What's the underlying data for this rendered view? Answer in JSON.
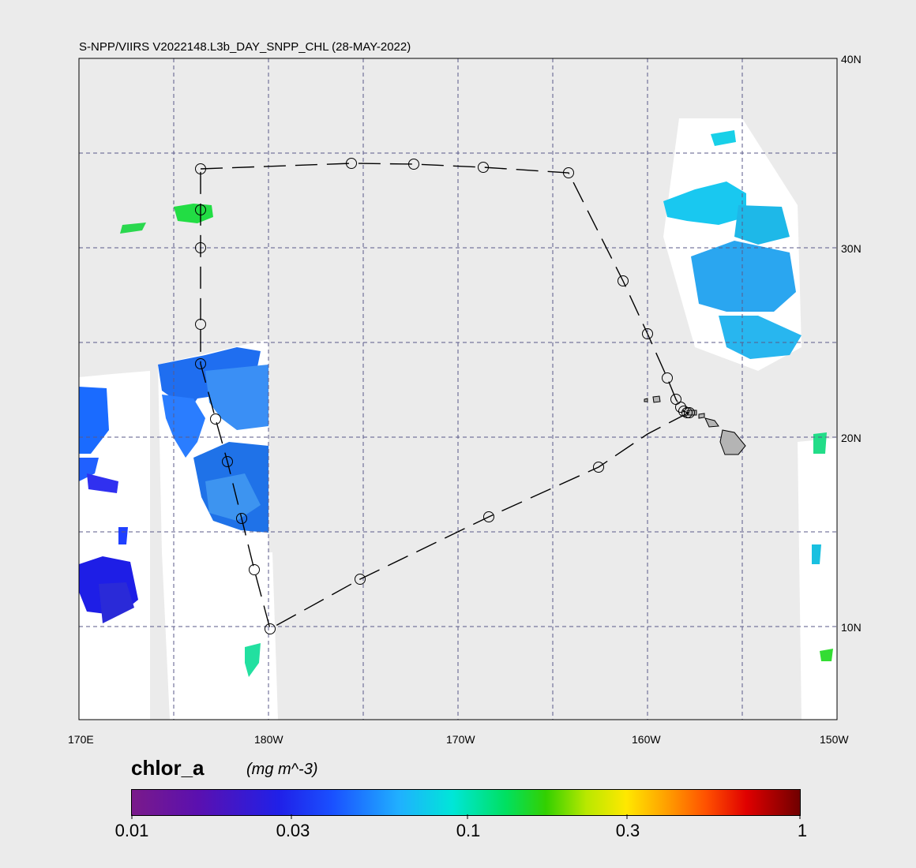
{
  "title": "S-NPP/VIIRS V2022148.L3b_DAY_SNPP_CHL (28-MAY-2022)",
  "map": {
    "lon_labels": [
      "170E",
      "180W",
      "170W",
      "160W",
      "150W"
    ],
    "lat_labels": [
      "40N",
      "30N",
      "20N",
      "10N"
    ],
    "grid_color": "#5a5a8a",
    "background_color": "#ebebeb",
    "valid_data_color": "#ffffff",
    "land_color": "#b4b4b4"
  },
  "colorbar": {
    "variable": "chlor_a",
    "units": "(mg m^-3)",
    "tick_labels": [
      "0.01",
      "0.03",
      "0.1",
      "0.3",
      "1"
    ],
    "scale": "log",
    "range": [
      0.01,
      1
    ]
  }
}
